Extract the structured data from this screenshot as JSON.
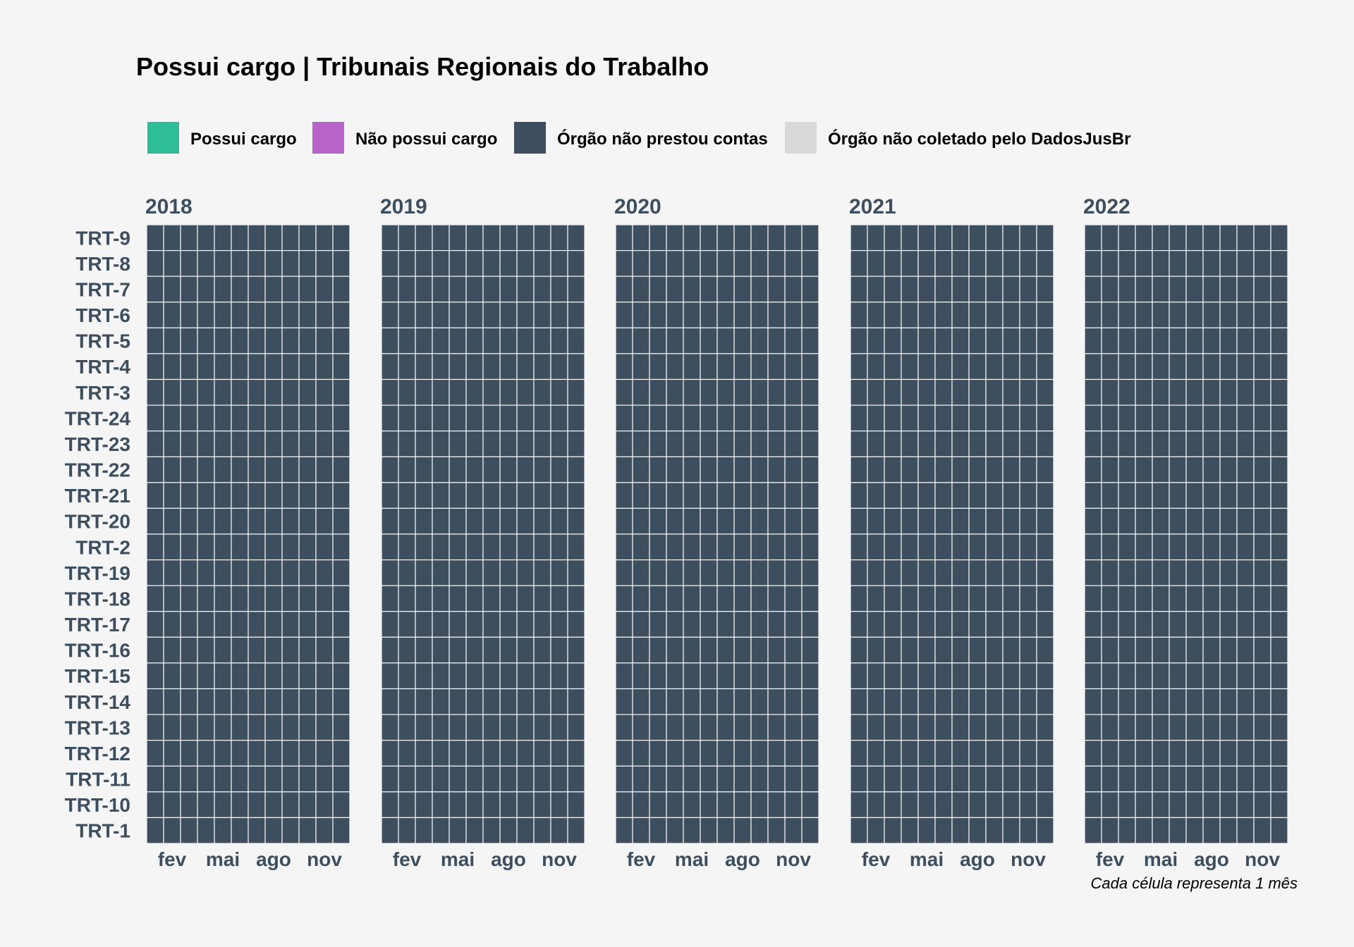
{
  "chart_data": {
    "type": "heatmap",
    "title": "Possui cargo | Tribunais Regionais do Trabalho",
    "caption": "Cada célula representa 1 mês",
    "legend_position": "top",
    "legend": [
      {
        "key": "possui",
        "label": "Possui cargo",
        "color": "#2ebd96"
      },
      {
        "key": "nao_possui",
        "label": "Não possui cargo",
        "color": "#b764c9"
      },
      {
        "key": "nao_prestou",
        "label": "Órgão não prestou contas",
        "color": "#3d4f5f"
      },
      {
        "key": "nao_coletado",
        "label": "Órgão não coletado pelo DadosJusBr",
        "color": "#d9d9d9"
      }
    ],
    "facets": [
      "2018",
      "2019",
      "2020",
      "2021",
      "2022"
    ],
    "x_ticks": [
      {
        "month": 2,
        "label": "fev"
      },
      {
        "month": 5,
        "label": "mai"
      },
      {
        "month": 8,
        "label": "ago"
      },
      {
        "month": 11,
        "label": "nov"
      }
    ],
    "months": [
      1,
      2,
      3,
      4,
      5,
      6,
      7,
      8,
      9,
      10,
      11,
      12
    ],
    "rows": [
      "TRT-9",
      "TRT-8",
      "TRT-7",
      "TRT-6",
      "TRT-5",
      "TRT-4",
      "TRT-3",
      "TRT-24",
      "TRT-23",
      "TRT-22",
      "TRT-21",
      "TRT-20",
      "TRT-2",
      "TRT-19",
      "TRT-18",
      "TRT-17",
      "TRT-16",
      "TRT-15",
      "TRT-14",
      "TRT-13",
      "TRT-12",
      "TRT-11",
      "TRT-10",
      "TRT-1"
    ],
    "cell_status_all": "nao_prestou",
    "cell_border_color": "#f5f5f5"
  }
}
